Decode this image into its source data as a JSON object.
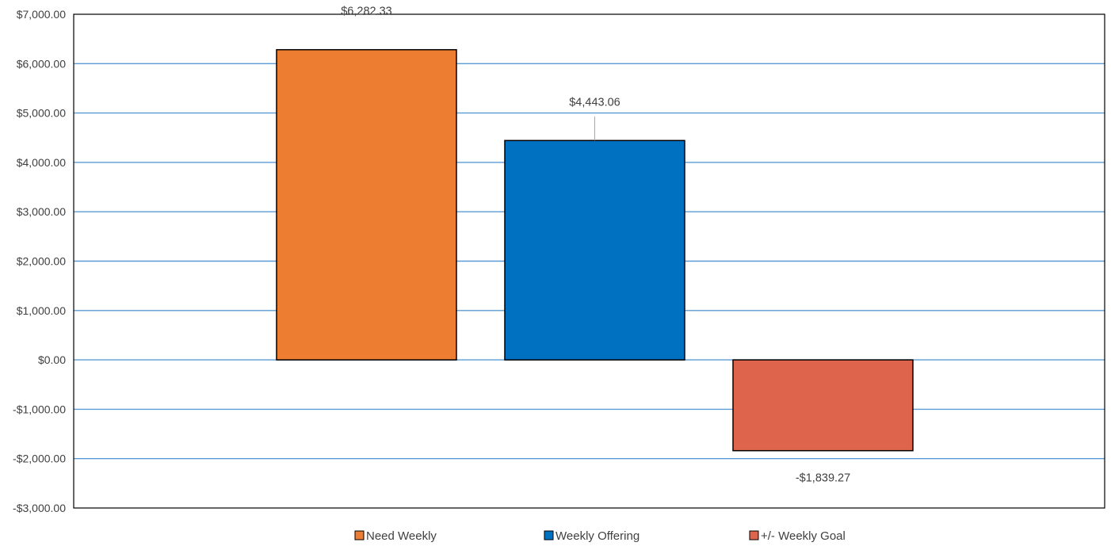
{
  "chart_data": {
    "type": "bar",
    "title": "",
    "xlabel": "",
    "ylabel": "",
    "ylim": [
      -3000,
      7000
    ],
    "yticks": [
      7000,
      6000,
      5000,
      4000,
      3000,
      2000,
      1000,
      0,
      -1000,
      -2000,
      -3000
    ],
    "ytick_labels": [
      "$7,000.00",
      "$6,000.00",
      "$5,000.00",
      "$4,000.00",
      "$3,000.00",
      "$2,000.00",
      "$1,000.00",
      "$0.00",
      "-$1,000.00",
      "-$2,000.00",
      "-$3,000.00"
    ],
    "grid": true,
    "legend_position": "bottom",
    "series": [
      {
        "name": "Need Weekly",
        "value": 6282.33,
        "label": "$6,282.33",
        "color": "#ED7D31"
      },
      {
        "name": "Weekly Offering",
        "value": 4443.06,
        "label": "$4,443.06",
        "color": "#0070C0"
      },
      {
        "name": "+/- Weekly Goal",
        "value": -1839.27,
        "label": "-$1,839.27",
        "color": "#DE644C"
      }
    ]
  },
  "colors": {
    "gridline": "#5B9BD5",
    "axis": "#000000",
    "bar_border": "#000000",
    "text": "#404040"
  }
}
